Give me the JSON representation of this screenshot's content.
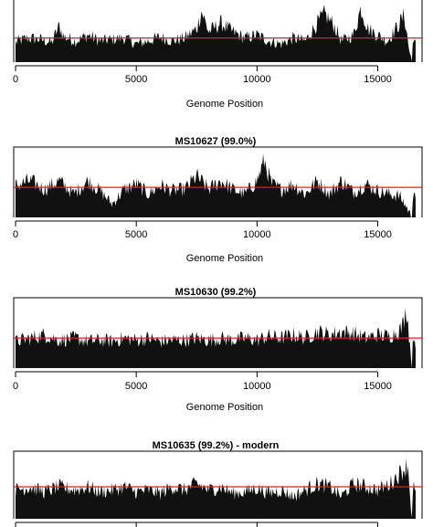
{
  "chart_data": [
    {
      "type": "area",
      "title": "",
      "xlabel": "Genome Position",
      "ylabel": "",
      "xlim": [
        0,
        16569
      ],
      "xticks": [
        0,
        5000,
        10000,
        15000
      ],
      "xtick_labels": [
        "0",
        "5000",
        "10000",
        "15000"
      ],
      "mean_line_rel": 0.4,
      "profile_rel": [
        [
          0,
          0.33
        ],
        [
          500,
          0.4
        ],
        [
          1000,
          0.38
        ],
        [
          1500,
          0.32
        ],
        [
          1800,
          0.6
        ],
        [
          2000,
          0.42
        ],
        [
          2500,
          0.35
        ],
        [
          3000,
          0.45
        ],
        [
          3500,
          0.35
        ],
        [
          4000,
          0.38
        ],
        [
          4500,
          0.4
        ],
        [
          5000,
          0.3
        ],
        [
          5500,
          0.35
        ],
        [
          6000,
          0.42
        ],
        [
          6500,
          0.35
        ],
        [
          7000,
          0.4
        ],
        [
          7500,
          0.55
        ],
        [
          7700,
          0.85
        ],
        [
          8000,
          0.5
        ],
        [
          8500,
          0.65
        ],
        [
          9000,
          0.5
        ],
        [
          9500,
          0.4
        ],
        [
          10000,
          0.45
        ],
        [
          10500,
          0.35
        ],
        [
          11000,
          0.3
        ],
        [
          11500,
          0.4
        ],
        [
          12000,
          0.35
        ],
        [
          12500,
          0.65
        ],
        [
          12800,
          0.8
        ],
        [
          13200,
          0.6
        ],
        [
          13500,
          0.35
        ],
        [
          14000,
          0.45
        ],
        [
          14300,
          0.9
        ],
        [
          14600,
          0.55
        ],
        [
          15000,
          0.45
        ],
        [
          15400,
          0.35
        ],
        [
          15800,
          0.58
        ],
        [
          16100,
          0.78
        ],
        [
          16300,
          0.2
        ],
        [
          16420,
          0.0
        ],
        [
          16470,
          0.5
        ],
        [
          16569,
          0.28
        ]
      ],
      "colors": {
        "area": "#111111",
        "mean_line": "#e02020"
      }
    },
    {
      "type": "area",
      "title": "MS10627 (99.0%)",
      "xlabel": "Genome Position",
      "ylabel": "",
      "xlim": [
        0,
        16569
      ],
      "xticks": [
        0,
        5000,
        10000,
        15000
      ],
      "xtick_labels": [
        "0",
        "5000",
        "10000",
        "15000"
      ],
      "mean_line_rel": 0.45,
      "profile_rel": [
        [
          0,
          0.48
        ],
        [
          600,
          0.55
        ],
        [
          1200,
          0.42
        ],
        [
          1800,
          0.55
        ],
        [
          2400,
          0.35
        ],
        [
          3000,
          0.55
        ],
        [
          3500,
          0.4
        ],
        [
          4000,
          0.2
        ],
        [
          4500,
          0.42
        ],
        [
          5000,
          0.5
        ],
        [
          5500,
          0.35
        ],
        [
          6000,
          0.48
        ],
        [
          6500,
          0.4
        ],
        [
          7000,
          0.42
        ],
        [
          7500,
          0.62
        ],
        [
          8000,
          0.42
        ],
        [
          8500,
          0.55
        ],
        [
          9000,
          0.42
        ],
        [
          9500,
          0.35
        ],
        [
          10000,
          0.55
        ],
        [
          10300,
          0.85
        ],
        [
          10600,
          0.5
        ],
        [
          11000,
          0.42
        ],
        [
          11500,
          0.5
        ],
        [
          12000,
          0.35
        ],
        [
          12500,
          0.55
        ],
        [
          13000,
          0.35
        ],
        [
          13500,
          0.55
        ],
        [
          14000,
          0.38
        ],
        [
          14500,
          0.5
        ],
        [
          15000,
          0.4
        ],
        [
          15500,
          0.35
        ],
        [
          15900,
          0.32
        ],
        [
          16200,
          0.15
        ],
        [
          16420,
          0.0
        ],
        [
          16470,
          0.5
        ],
        [
          16569,
          0.32
        ]
      ],
      "colors": {
        "area": "#111111",
        "mean_line": "#e02020"
      }
    },
    {
      "type": "area",
      "title": "MS10630 (99.2%)",
      "xlabel": "Genome Position",
      "ylabel": "",
      "xlim": [
        0,
        16569
      ],
      "xticks": [
        0,
        5000,
        10000,
        15000
      ],
      "xtick_labels": [
        "0",
        "5000",
        "10000",
        "15000"
      ],
      "mean_line_rel": 0.45,
      "profile_rel": [
        [
          0,
          0.4
        ],
        [
          600,
          0.45
        ],
        [
          1200,
          0.5
        ],
        [
          1800,
          0.42
        ],
        [
          2500,
          0.45
        ],
        [
          3000,
          0.4
        ],
        [
          3500,
          0.42
        ],
        [
          4000,
          0.4
        ],
        [
          4500,
          0.45
        ],
        [
          5000,
          0.42
        ],
        [
          5500,
          0.45
        ],
        [
          6000,
          0.4
        ],
        [
          6500,
          0.42
        ],
        [
          7000,
          0.42
        ],
        [
          7500,
          0.45
        ],
        [
          8000,
          0.42
        ],
        [
          8500,
          0.45
        ],
        [
          9000,
          0.42
        ],
        [
          9500,
          0.45
        ],
        [
          10000,
          0.42
        ],
        [
          10500,
          0.48
        ],
        [
          11000,
          0.45
        ],
        [
          11500,
          0.5
        ],
        [
          12000,
          0.45
        ],
        [
          12500,
          0.55
        ],
        [
          13000,
          0.5
        ],
        [
          13500,
          0.55
        ],
        [
          14000,
          0.52
        ],
        [
          14500,
          0.45
        ],
        [
          15000,
          0.5
        ],
        [
          15500,
          0.48
        ],
        [
          16000,
          0.6
        ],
        [
          16200,
          0.9
        ],
        [
          16380,
          0.15
        ],
        [
          16420,
          0.0
        ],
        [
          16470,
          0.55
        ],
        [
          16569,
          0.35
        ]
      ],
      "colors": {
        "area": "#111111",
        "mean_line": "#e02020"
      }
    },
    {
      "type": "area",
      "title": "MS10635 (99.2%) - modern",
      "xlabel": "",
      "ylabel": "",
      "xlim": [
        0,
        16569
      ],
      "xticks": [
        0,
        5000,
        10000,
        15000
      ],
      "xtick_labels": [],
      "mean_line_rel": 0.5,
      "profile_rel": [
        [
          0,
          0.45
        ],
        [
          600,
          0.5
        ],
        [
          1200,
          0.42
        ],
        [
          1800,
          0.5
        ],
        [
          2500,
          0.45
        ],
        [
          3000,
          0.5
        ],
        [
          3500,
          0.42
        ],
        [
          4000,
          0.45
        ],
        [
          4500,
          0.5
        ],
        [
          5000,
          0.42
        ],
        [
          5500,
          0.45
        ],
        [
          6000,
          0.4
        ],
        [
          6500,
          0.5
        ],
        [
          7000,
          0.45
        ],
        [
          7500,
          0.55
        ],
        [
          8000,
          0.45
        ],
        [
          8500,
          0.5
        ],
        [
          9000,
          0.4
        ],
        [
          9500,
          0.42
        ],
        [
          10000,
          0.48
        ],
        [
          10500,
          0.4
        ],
        [
          11000,
          0.45
        ],
        [
          11500,
          0.35
        ],
        [
          12000,
          0.45
        ],
        [
          12500,
          0.55
        ],
        [
          13000,
          0.5
        ],
        [
          13500,
          0.35
        ],
        [
          14000,
          0.55
        ],
        [
          14500,
          0.5
        ],
        [
          15000,
          0.45
        ],
        [
          15500,
          0.55
        ],
        [
          16000,
          0.75
        ],
        [
          16250,
          0.85
        ],
        [
          16380,
          0.15
        ],
        [
          16420,
          0.0
        ],
        [
          16470,
          0.55
        ],
        [
          16569,
          0.35
        ]
      ],
      "colors": {
        "area": "#111111",
        "mean_line": "#e02020"
      }
    }
  ]
}
